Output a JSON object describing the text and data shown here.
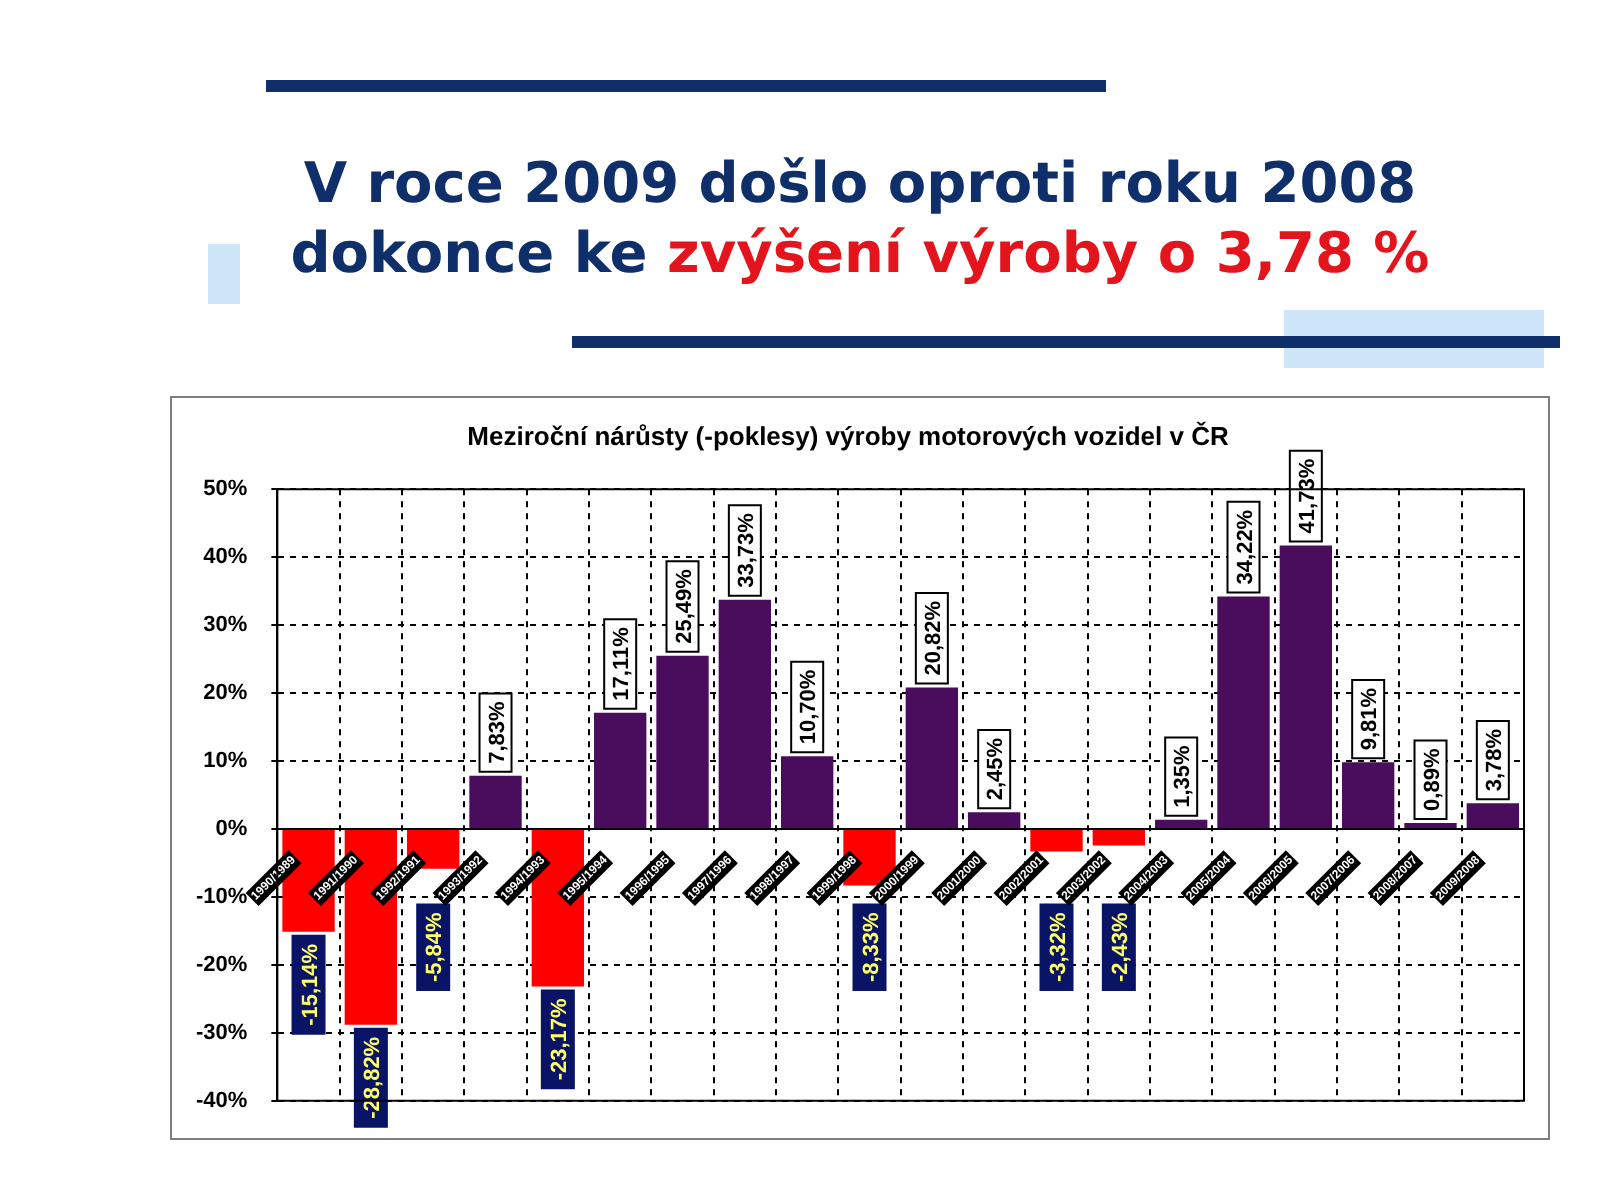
{
  "chart_data": {
    "type": "bar",
    "title": "V roce 2009 došlo oproti roku 2008",
    "annotations": [
      "dokonce ke",
      "zvýšení výroby o 3,78 %"
    ],
    "subtitle": "Meziroční nárůsty (-poklesy) výroby motorových vozidel v ČR",
    "categories": [
      "1990/1989",
      "1991/1990",
      "1992/1991",
      "1993/1992",
      "1994/1993",
      "1995/1994",
      "1996/1995",
      "1997/1996",
      "1998/1997",
      "1999/1998",
      "2000/1999",
      "2001/2000",
      "2002/2001",
      "2003/2002",
      "2004/2003",
      "2005/2004",
      "2006/2005",
      "2007/2006",
      "2008/2007",
      "2009/2008"
    ],
    "values": [
      -15.14,
      -28.82,
      -5.84,
      7.83,
      -23.17,
      17.11,
      25.49,
      33.73,
      10.7,
      -8.33,
      20.82,
      2.45,
      -3.32,
      -2.43,
      1.35,
      34.22,
      41.73,
      9.81,
      0.89,
      3.78
    ],
    "value_labels": [
      "-15,14%",
      "-28,82%",
      "-5,84%",
      "7,83%",
      "-23,17%",
      "17,11%",
      "25,49%",
      "33,73%",
      "10,70%",
      "-8,33%",
      "20,82%",
      "2,45%",
      "-3,32%",
      "-2,43%",
      "1,35%",
      "34,22%",
      "41,73%",
      "9,81%",
      "0,89%",
      "3,78%"
    ],
    "colors": [
      "#ff0000",
      "#ff0000",
      "#ff0000",
      "#4a0c5c",
      "#ff0000",
      "#4a0c5c",
      "#4a0c5c",
      "#4a0c5c",
      "#4a0c5c",
      "#ff0000",
      "#4a0c5c",
      "#4a0c5c",
      "#ff0000",
      "#ff0000",
      "#4a0c5c",
      "#4a0c5c",
      "#4a0c5c",
      "#4a0c5c",
      "#4a0c5c",
      "#4a0c5c"
    ],
    "ylim": [
      -40,
      50
    ],
    "yticks": [
      {
        "value": -40,
        "label": "-40%"
      },
      {
        "value": -30,
        "label": "-30%"
      },
      {
        "value": -20,
        "label": "-20%"
      },
      {
        "value": -10,
        "label": "-10%"
      },
      {
        "value": 0,
        "label": "0%"
      },
      {
        "value": 10,
        "label": "10%"
      },
      {
        "value": 20,
        "label": "20%"
      },
      {
        "value": 30,
        "label": "30%"
      },
      {
        "value": 40,
        "label": "40%"
      },
      {
        "value": 50,
        "label": "50%"
      }
    ],
    "grid": true
  }
}
